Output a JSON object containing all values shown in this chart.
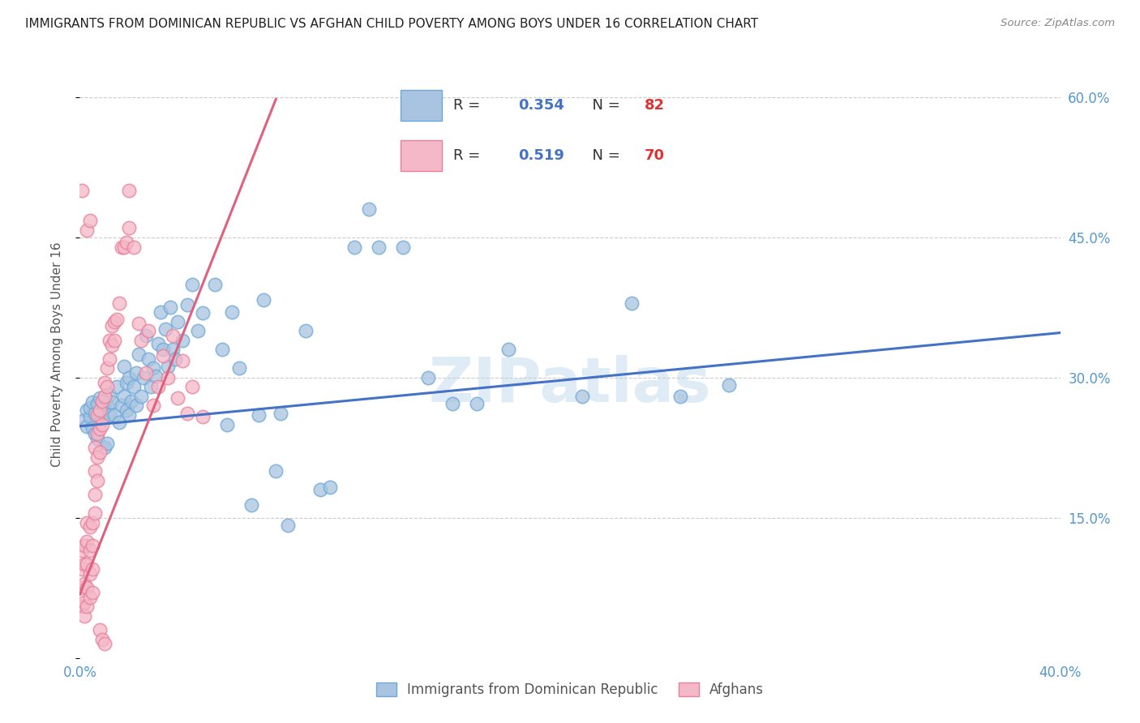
{
  "title": "IMMIGRANTS FROM DOMINICAN REPUBLIC VS AFGHAN CHILD POVERTY AMONG BOYS UNDER 16 CORRELATION CHART",
  "source": "Source: ZipAtlas.com",
  "ylabel": "Child Poverty Among Boys Under 16",
  "legend_blue_label": "Immigrants from Dominican Republic",
  "legend_pink_label": "Afghans",
  "watermark": "ZIPatlas",
  "blue_color": "#a8c4e0",
  "blue_edge_color": "#6ea8d8",
  "blue_line_color": "#4472c4",
  "pink_color": "#f4b8c8",
  "pink_edge_color": "#e8809a",
  "pink_line_color": "#e06080",
  "title_color": "#222222",
  "right_axis_color": "#5599cc",
  "blue_scatter": [
    [
      0.002,
      0.255
    ],
    [
      0.003,
      0.265
    ],
    [
      0.003,
      0.248
    ],
    [
      0.004,
      0.258
    ],
    [
      0.004,
      0.268
    ],
    [
      0.005,
      0.246
    ],
    [
      0.005,
      0.274
    ],
    [
      0.006,
      0.24
    ],
    [
      0.006,
      0.262
    ],
    [
      0.007,
      0.235
    ],
    [
      0.007,
      0.272
    ],
    [
      0.008,
      0.26
    ],
    [
      0.008,
      0.278
    ],
    [
      0.009,
      0.256
    ],
    [
      0.01,
      0.225
    ],
    [
      0.01,
      0.268
    ],
    [
      0.011,
      0.23
    ],
    [
      0.011,
      0.27
    ],
    [
      0.012,
      0.26
    ],
    [
      0.012,
      0.282
    ],
    [
      0.013,
      0.274
    ],
    [
      0.014,
      0.26
    ],
    [
      0.015,
      0.29
    ],
    [
      0.016,
      0.252
    ],
    [
      0.017,
      0.27
    ],
    [
      0.018,
      0.28
    ],
    [
      0.018,
      0.312
    ],
    [
      0.019,
      0.265
    ],
    [
      0.019,
      0.295
    ],
    [
      0.02,
      0.26
    ],
    [
      0.02,
      0.3
    ],
    [
      0.021,
      0.275
    ],
    [
      0.022,
      0.29
    ],
    [
      0.023,
      0.27
    ],
    [
      0.023,
      0.305
    ],
    [
      0.024,
      0.325
    ],
    [
      0.025,
      0.28
    ],
    [
      0.026,
      0.3
    ],
    [
      0.027,
      0.345
    ],
    [
      0.028,
      0.32
    ],
    [
      0.029,
      0.29
    ],
    [
      0.03,
      0.31
    ],
    [
      0.031,
      0.302
    ],
    [
      0.032,
      0.336
    ],
    [
      0.033,
      0.37
    ],
    [
      0.034,
      0.33
    ],
    [
      0.035,
      0.352
    ],
    [
      0.036,
      0.312
    ],
    [
      0.037,
      0.375
    ],
    [
      0.038,
      0.33
    ],
    [
      0.039,
      0.32
    ],
    [
      0.04,
      0.36
    ],
    [
      0.042,
      0.34
    ],
    [
      0.044,
      0.378
    ],
    [
      0.046,
      0.4
    ],
    [
      0.048,
      0.35
    ],
    [
      0.05,
      0.369
    ],
    [
      0.055,
      0.4
    ],
    [
      0.058,
      0.33
    ],
    [
      0.06,
      0.25
    ],
    [
      0.062,
      0.37
    ],
    [
      0.065,
      0.31
    ],
    [
      0.07,
      0.164
    ],
    [
      0.073,
      0.26
    ],
    [
      0.075,
      0.383
    ],
    [
      0.08,
      0.2
    ],
    [
      0.082,
      0.262
    ],
    [
      0.085,
      0.142
    ],
    [
      0.092,
      0.35
    ],
    [
      0.098,
      0.18
    ],
    [
      0.102,
      0.183
    ],
    [
      0.112,
      0.44
    ],
    [
      0.118,
      0.48
    ],
    [
      0.122,
      0.44
    ],
    [
      0.132,
      0.44
    ],
    [
      0.142,
      0.3
    ],
    [
      0.152,
      0.272
    ],
    [
      0.162,
      0.272
    ],
    [
      0.175,
      0.33
    ],
    [
      0.205,
      0.28
    ],
    [
      0.225,
      0.38
    ],
    [
      0.245,
      0.28
    ],
    [
      0.265,
      0.292
    ]
  ],
  "pink_scatter": [
    [
      0.001,
      0.055
    ],
    [
      0.001,
      0.075
    ],
    [
      0.001,
      0.095
    ],
    [
      0.001,
      0.115
    ],
    [
      0.002,
      0.06
    ],
    [
      0.002,
      0.08
    ],
    [
      0.002,
      0.1
    ],
    [
      0.002,
      0.12
    ],
    [
      0.002,
      0.045
    ],
    [
      0.003,
      0.055
    ],
    [
      0.003,
      0.075
    ],
    [
      0.003,
      0.1
    ],
    [
      0.003,
      0.125
    ],
    [
      0.003,
      0.145
    ],
    [
      0.004,
      0.065
    ],
    [
      0.004,
      0.09
    ],
    [
      0.004,
      0.115
    ],
    [
      0.004,
      0.14
    ],
    [
      0.005,
      0.07
    ],
    [
      0.005,
      0.095
    ],
    [
      0.005,
      0.12
    ],
    [
      0.005,
      0.145
    ],
    [
      0.006,
      0.155
    ],
    [
      0.006,
      0.175
    ],
    [
      0.006,
      0.2
    ],
    [
      0.006,
      0.225
    ],
    [
      0.007,
      0.19
    ],
    [
      0.007,
      0.215
    ],
    [
      0.007,
      0.24
    ],
    [
      0.007,
      0.26
    ],
    [
      0.008,
      0.22
    ],
    [
      0.008,
      0.245
    ],
    [
      0.008,
      0.265
    ],
    [
      0.009,
      0.25
    ],
    [
      0.009,
      0.275
    ],
    [
      0.01,
      0.28
    ],
    [
      0.01,
      0.295
    ],
    [
      0.011,
      0.31
    ],
    [
      0.011,
      0.29
    ],
    [
      0.012,
      0.34
    ],
    [
      0.012,
      0.32
    ],
    [
      0.013,
      0.355
    ],
    [
      0.013,
      0.335
    ],
    [
      0.014,
      0.36
    ],
    [
      0.014,
      0.34
    ],
    [
      0.015,
      0.362
    ],
    [
      0.016,
      0.38
    ],
    [
      0.017,
      0.44
    ],
    [
      0.018,
      0.44
    ],
    [
      0.019,
      0.445
    ],
    [
      0.02,
      0.46
    ],
    [
      0.02,
      0.5
    ],
    [
      0.022,
      0.44
    ],
    [
      0.024,
      0.358
    ],
    [
      0.025,
      0.34
    ],
    [
      0.027,
      0.305
    ],
    [
      0.028,
      0.35
    ],
    [
      0.03,
      0.27
    ],
    [
      0.032,
      0.29
    ],
    [
      0.034,
      0.323
    ],
    [
      0.036,
      0.3
    ],
    [
      0.038,
      0.345
    ],
    [
      0.04,
      0.278
    ],
    [
      0.042,
      0.318
    ],
    [
      0.044,
      0.262
    ],
    [
      0.046,
      0.29
    ],
    [
      0.05,
      0.258
    ],
    [
      0.008,
      0.03
    ],
    [
      0.009,
      0.02
    ],
    [
      0.01,
      0.015
    ],
    [
      0.001,
      0.5
    ],
    [
      0.003,
      0.458
    ],
    [
      0.004,
      0.468
    ]
  ],
  "blue_trend_x": [
    0.0,
    0.4
  ],
  "blue_trend_y": [
    0.248,
    0.348
  ],
  "pink_trend_x": [
    0.0,
    0.08
  ],
  "pink_trend_y": [
    0.068,
    0.598
  ],
  "xlim": [
    0.0,
    0.4
  ],
  "ylim": [
    0.0,
    0.65
  ],
  "xticks": [
    0.0,
    0.05,
    0.1,
    0.15,
    0.2,
    0.25,
    0.3,
    0.35,
    0.4
  ],
  "xtick_labels": [
    "0.0%",
    "",
    "",
    "",
    "",
    "",
    "",
    "",
    "40.0%"
  ],
  "yticks_vals": [
    0.0,
    0.15,
    0.3,
    0.45,
    0.6
  ],
  "ytick_labels_right": [
    "",
    "15.0%",
    "30.0%",
    "45.0%",
    "60.0%"
  ]
}
